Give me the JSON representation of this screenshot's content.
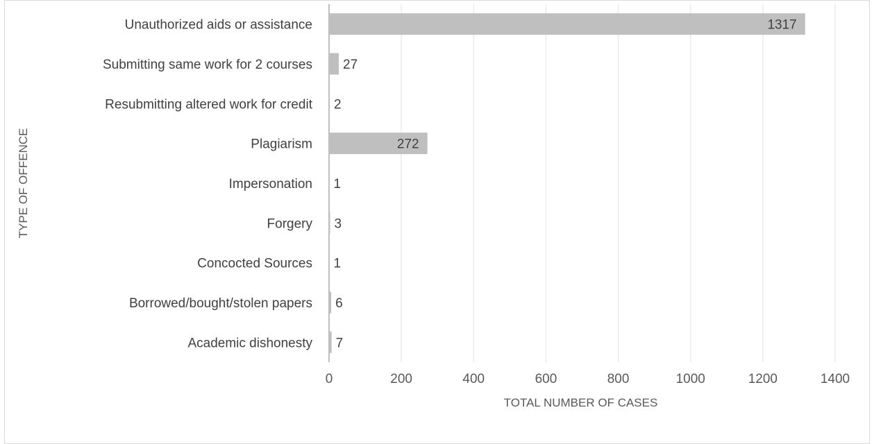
{
  "chart_data": {
    "type": "bar",
    "orientation": "horizontal",
    "title": "",
    "xlabel": "TOTAL NUMBER OF CASES",
    "ylabel": "TYPE OF OFFENCE",
    "categories": [
      "Unauthorized aids or assistance",
      "Submitting same work for 2 courses",
      "Resubmitting altered work for credit",
      "Plagiarism",
      "Impersonation",
      "Forgery",
      "Concocted Sources",
      "Borrowed/bought/stolen papers",
      "Academic dishonesty"
    ],
    "values": [
      1317,
      27,
      2,
      272,
      1,
      3,
      1,
      6,
      7
    ],
    "xlim": [
      0,
      1400
    ],
    "xticks": [
      0,
      200,
      400,
      600,
      800,
      1000,
      1200,
      1400
    ],
    "grid": "vertical",
    "legend": "none",
    "colors": {
      "bar": "#bfbfbf",
      "axis": "#bfbfbf",
      "grid": "#e9e9e9",
      "text": "#404040"
    }
  }
}
